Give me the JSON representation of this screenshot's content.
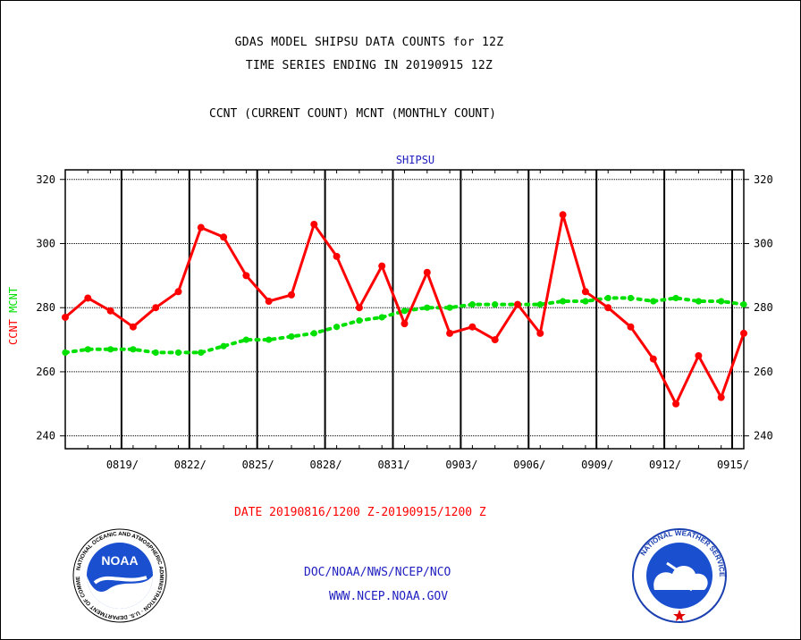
{
  "title_line1": "GDAS MODEL SHIPSU DATA COUNTS for 12Z",
  "title_line2": "TIME SERIES ENDING IN 20190915 12Z",
  "title_line3": "CCNT (CURRENT COUNT) MCNT (MONTHLY COUNT)",
  "date_range": "DATE 20190816/1200 Z-20190915/1200 Z",
  "footer_line1": "DOC/NOAA/NWS/NCEP/NCO",
  "footer_line2": "WWW.NCEP.NOAA.GOV",
  "logos": {
    "left": {
      "text": "NOAA",
      "ring_text": "NATIONAL OCEANIC AND ATMOSPHERIC ADMINISTRATION · U.S. DEPARTMENT OF COMMERCE"
    },
    "right": {
      "ring_text": "NATIONAL WEATHER SERVICE"
    }
  },
  "chart_data": {
    "type": "line",
    "title": "SHIPSU",
    "ylabel_left": "CCNT",
    "ylabel_right": "MCNT",
    "ylim": [
      236,
      323
    ],
    "y_ticks": [
      240,
      260,
      280,
      300,
      320
    ],
    "x_tick_labels": [
      "0819/",
      "0822/",
      "0825/",
      "0828/",
      "0831/",
      "0903/",
      "0906/",
      "0909/",
      "0912/",
      "0915/"
    ],
    "grid": true,
    "colors": {
      "CCNT": "#ff0000",
      "MCNT": "#00e000",
      "axis_label_ccnt": "#ff0000",
      "axis_label_mcnt": "#00e000",
      "title": "#2020c0"
    },
    "series": [
      {
        "name": "CCNT",
        "values": [
          277,
          283,
          279,
          274,
          280,
          285,
          305,
          302,
          290,
          282,
          284,
          306,
          296,
          280,
          293,
          275,
          291,
          272,
          274,
          270,
          281,
          272,
          309,
          285,
          280,
          274,
          264,
          250,
          265,
          252,
          272
        ]
      },
      {
        "name": "MCNT",
        "values": [
          266,
          267,
          267,
          267,
          266,
          266,
          266,
          268,
          270,
          270,
          271,
          272,
          274,
          276,
          277,
          279,
          280,
          280,
          281,
          281,
          281,
          281,
          282,
          282,
          283,
          283,
          282,
          283,
          282,
          282,
          281
        ]
      }
    ]
  }
}
